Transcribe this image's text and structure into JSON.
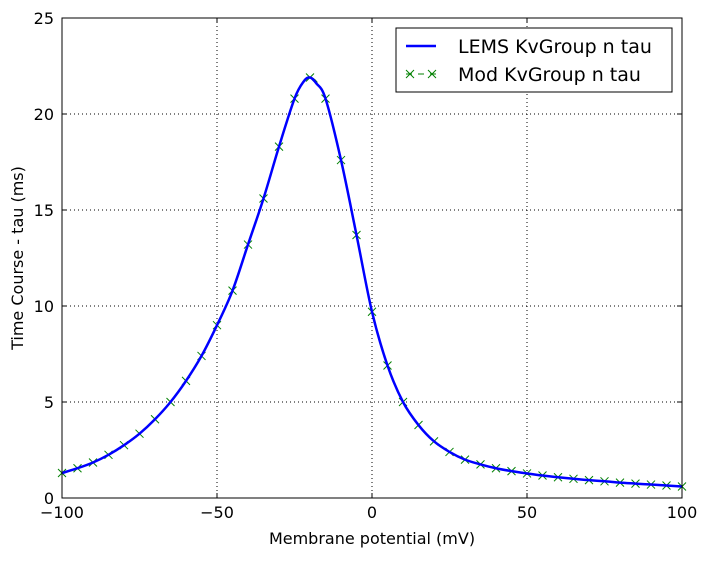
{
  "chart_data": {
    "type": "line",
    "xlabel": "Membrane potential (mV)",
    "ylabel": "Time Course - tau (ms)",
    "xlim": [
      -100,
      100
    ],
    "ylim": [
      0,
      25
    ],
    "xticks": [
      -100,
      -50,
      0,
      50,
      100
    ],
    "xtick_labels": [
      "−100",
      "−50",
      "0",
      "50",
      "100"
    ],
    "yticks": [
      0,
      5,
      10,
      15,
      20,
      25
    ],
    "grid": true,
    "legend_position": "top-right",
    "series": [
      {
        "name": "LEMS KvGroup n tau",
        "style": "line",
        "color": "#0000ff",
        "x": [
          -100,
          -95,
          -90,
          -85,
          -80,
          -75,
          -70,
          -65,
          -60,
          -55,
          -50,
          -45,
          -40,
          -35,
          -30,
          -25,
          -22,
          -20,
          -18,
          -15,
          -10,
          -5,
          0,
          5,
          10,
          15,
          20,
          25,
          30,
          35,
          40,
          45,
          50,
          55,
          60,
          65,
          70,
          75,
          80,
          85,
          90,
          95,
          100
        ],
        "y": [
          1.3,
          1.55,
          1.85,
          2.25,
          2.75,
          3.35,
          4.1,
          5.0,
          6.1,
          7.4,
          9.0,
          10.8,
          13.2,
          15.6,
          18.3,
          20.8,
          21.7,
          21.9,
          21.6,
          20.8,
          17.6,
          13.7,
          9.7,
          6.9,
          5.0,
          3.8,
          2.95,
          2.4,
          2.0,
          1.75,
          1.55,
          1.4,
          1.28,
          1.17,
          1.08,
          1.0,
          0.93,
          0.87,
          0.8,
          0.75,
          0.7,
          0.65,
          0.6
        ]
      },
      {
        "name": "Mod KvGroup n tau",
        "style": "line-x",
        "color": "#008000",
        "x": [
          -100,
          -95,
          -90,
          -85,
          -80,
          -75,
          -70,
          -65,
          -60,
          -55,
          -50,
          -45,
          -40,
          -35,
          -30,
          -25,
          -20,
          -15,
          -10,
          -5,
          0,
          5,
          10,
          15,
          20,
          25,
          30,
          35,
          40,
          45,
          50,
          55,
          60,
          65,
          70,
          75,
          80,
          85,
          90,
          95,
          100
        ],
        "y": [
          1.3,
          1.55,
          1.85,
          2.25,
          2.75,
          3.35,
          4.1,
          5.0,
          6.1,
          7.4,
          9.0,
          10.8,
          13.2,
          15.6,
          18.3,
          20.8,
          21.9,
          20.8,
          17.6,
          13.7,
          9.7,
          6.9,
          5.0,
          3.8,
          2.95,
          2.4,
          2.0,
          1.75,
          1.55,
          1.4,
          1.28,
          1.17,
          1.08,
          1.0,
          0.93,
          0.87,
          0.8,
          0.75,
          0.7,
          0.65,
          0.6
        ]
      }
    ]
  }
}
